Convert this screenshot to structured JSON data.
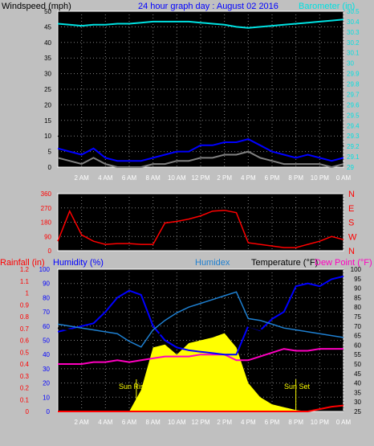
{
  "header": {
    "windspeed_label": "Windspeed (mph)",
    "title": "24 hour graph day : August 02 2016",
    "barometer_label": "Barometer (in)"
  },
  "colors": {
    "background": "#c0c0c0",
    "plot_bg": "#000000",
    "grid": "#808080",
    "wind_gust": "#000000",
    "wind_avg": "#0000ff",
    "wind_min": "#808080",
    "barometer": "#00e0e0",
    "direction": "#ff0000",
    "rainfall": "#ff0000",
    "humidity": "#0000ff",
    "humidex": "#1e7fd0",
    "temperature": "#000000",
    "dew_point": "#ff00c0",
    "solar": "#ffff00",
    "sun_labels": "#ffff00",
    "x_ticks": "#ffffff"
  },
  "x_ticks": [
    "2 AM",
    "4 AM",
    "6 AM",
    "8 AM",
    "10 AM",
    "12 PM",
    "2 PM",
    "4 PM",
    "6 PM",
    "8 PM",
    "10 PM",
    "0 AM"
  ],
  "chart_data": [
    {
      "type": "line",
      "title": "24 hour graph day : August 02 2016",
      "ylabel": "Windspeed (mph)",
      "y2label": "Barometer (in)",
      "ylim": [
        0,
        50
      ],
      "y_ticks": [
        "0",
        "5",
        "10",
        "15",
        "20",
        "25",
        "30",
        "35",
        "40",
        "45",
        "50"
      ],
      "y2lim": [
        29.0,
        30.5
      ],
      "y2_ticks": [
        "29",
        "29.1",
        "29.2",
        "29.3",
        "29.4",
        "29.5",
        "29.6",
        "29.7",
        "29.8",
        "29.9",
        "30",
        "30.1",
        "30.2",
        "30.3",
        "30.4",
        "30.5"
      ],
      "x_hours": [
        0,
        1,
        2,
        3,
        4,
        5,
        6,
        7,
        8,
        9,
        10,
        11,
        12,
        13,
        14,
        15,
        16,
        17,
        18,
        19,
        20,
        21,
        22,
        23,
        24
      ],
      "series": [
        {
          "name": "gust",
          "values": [
            10,
            8,
            7,
            9,
            6,
            5,
            4,
            4,
            6,
            7,
            8,
            8,
            12,
            11,
            13,
            15,
            18,
            14,
            10,
            8,
            6,
            8,
            6,
            4,
            7
          ]
        },
        {
          "name": "average",
          "values": [
            6,
            5,
            4,
            6,
            3,
            2,
            2,
            2,
            3,
            4,
            5,
            5,
            7,
            7,
            8,
            8,
            9,
            7,
            5,
            4,
            3,
            4,
            3,
            2,
            3
          ]
        },
        {
          "name": "minimum",
          "values": [
            3,
            2,
            1,
            3,
            1,
            0,
            0,
            0,
            1,
            1,
            2,
            2,
            3,
            3,
            4,
            4,
            5,
            3,
            2,
            1,
            1,
            1,
            1,
            0,
            1
          ]
        },
        {
          "name": "barometer",
          "values": [
            30.38,
            30.37,
            30.36,
            30.37,
            30.37,
            30.38,
            30.38,
            30.39,
            30.4,
            30.4,
            30.4,
            30.4,
            30.39,
            30.38,
            30.37,
            30.35,
            30.34,
            30.35,
            30.36,
            30.37,
            30.38,
            30.39,
            30.4,
            30.41,
            30.42
          ]
        }
      ]
    },
    {
      "type": "scatter",
      "title": "",
      "ylabel": "Wind direction",
      "ylim": [
        0,
        360
      ],
      "y_ticks": [
        "0",
        "90",
        "180",
        "270",
        "360"
      ],
      "compass_labels": [
        "N",
        "W",
        "S",
        "E",
        "N"
      ],
      "x_hours": [
        0,
        1,
        2,
        3,
        4,
        5,
        6,
        7,
        8,
        9,
        10,
        11,
        12,
        13,
        14,
        15,
        16,
        17,
        18,
        19,
        20,
        21,
        22,
        23,
        24
      ],
      "values": [
        60,
        250,
        100,
        60,
        40,
        45,
        45,
        40,
        40,
        175,
        185,
        200,
        220,
        250,
        255,
        240,
        50,
        40,
        30,
        20,
        20,
        40,
        60,
        90,
        70
      ]
    },
    {
      "type": "line",
      "title": "",
      "labels": {
        "rainfall": "Rainfall (in)",
        "humidity": "Humidity (%)",
        "humidex": "Humidex",
        "temperature": "Temperature (°F)",
        "dew_point": "Dew Point (°F)",
        "sun_rise": "Sun Rise",
        "sun_set": "Sun Set"
      },
      "rain_lim": [
        0,
        1.2
      ],
      "rain_ticks": [
        "0",
        "0.1",
        "0.2",
        "0.3",
        "0.4",
        "0.5",
        "0.6",
        "0.7",
        "0.8",
        "0.9",
        "1",
        "1.1",
        "1.2"
      ],
      "hum_lim": [
        0,
        100
      ],
      "hum_ticks": [
        "0",
        "10",
        "20",
        "30",
        "40",
        "50",
        "60",
        "70",
        "80",
        "90",
        "100"
      ],
      "temp_lim": [
        25,
        100
      ],
      "temp_ticks": [
        "25",
        "30",
        "35",
        "40",
        "45",
        "50",
        "55",
        "60",
        "65",
        "70",
        "75",
        "80",
        "85",
        "90",
        "95",
        "100"
      ],
      "sunrise_hour": 6.6,
      "sunset_hour": 20.0,
      "x_hours": [
        0,
        1,
        2,
        3,
        4,
        5,
        6,
        7,
        8,
        9,
        10,
        11,
        12,
        13,
        14,
        15,
        16,
        17,
        18,
        19,
        20,
        21,
        22,
        23,
        24
      ],
      "series": [
        {
          "name": "Temperature",
          "values": [
            69,
            68,
            68,
            66,
            64,
            62,
            58,
            57,
            63,
            68,
            72,
            76,
            79,
            81,
            83,
            85,
            70,
            68,
            66,
            65,
            64,
            63,
            63,
            62,
            62
          ]
        },
        {
          "name": "Humidex",
          "values": [
            71,
            70,
            69,
            68,
            67,
            66,
            62,
            59,
            68,
            73,
            77,
            80,
            82,
            84,
            86,
            88,
            74,
            73,
            71,
            69,
            68,
            67,
            66,
            65,
            64
          ]
        },
        {
          "name": "Humidity",
          "values": [
            56,
            58,
            60,
            62,
            70,
            80,
            85,
            82,
            60,
            50,
            45,
            43,
            42,
            41,
            40,
            40,
            60,
            57,
            65,
            70,
            88,
            90,
            88,
            93,
            95
          ]
        },
        {
          "name": "Dew Point",
          "values": [
            50,
            50,
            50,
            51,
            51,
            52,
            51,
            52,
            53,
            54,
            54,
            54,
            55,
            55,
            55,
            52,
            52,
            54,
            56,
            58,
            57,
            57,
            58,
            58,
            58
          ]
        },
        {
          "name": "Rainfall",
          "values": [
            0,
            0,
            0,
            0,
            0,
            0,
            0,
            0,
            0,
            0,
            0,
            0,
            0,
            0,
            0,
            0,
            0,
            0,
            0,
            0,
            0,
            0,
            0.02,
            0.04,
            0.05
          ]
        },
        {
          "name": "Solar",
          "values": [
            0,
            0,
            0,
            0,
            0,
            0,
            0,
            15,
            45,
            47,
            40,
            48,
            50,
            52,
            55,
            45,
            20,
            10,
            5,
            3,
            1,
            0,
            0,
            0,
            0
          ]
        }
      ]
    }
  ]
}
